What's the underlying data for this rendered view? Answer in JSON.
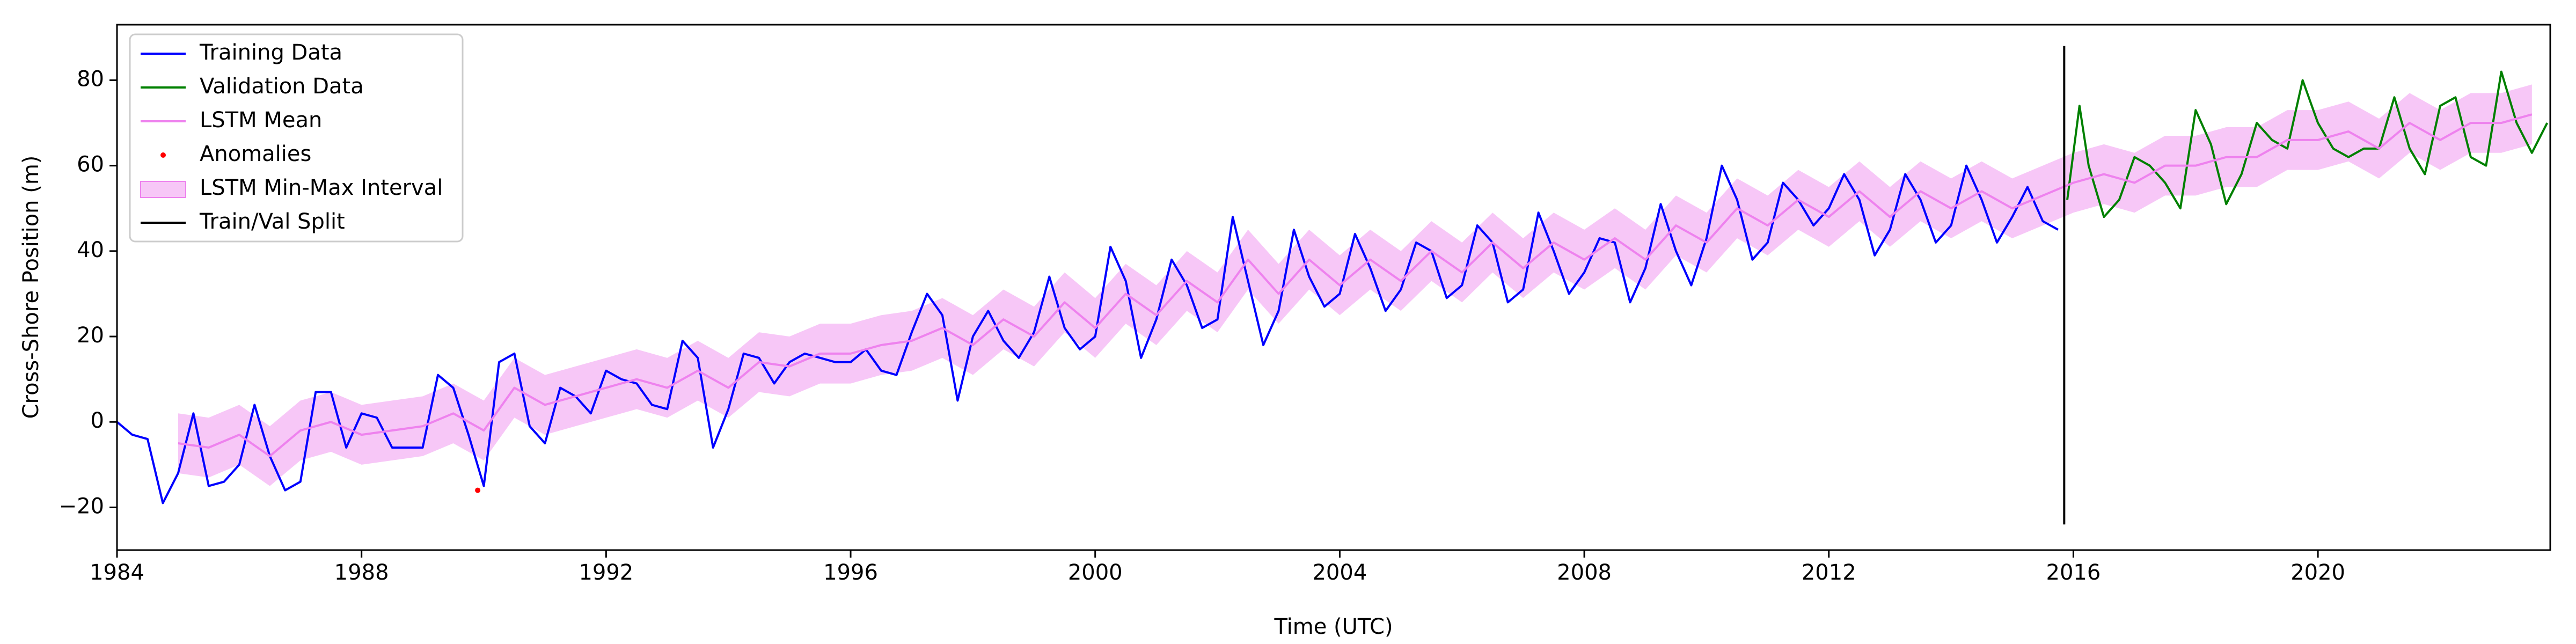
{
  "chart_data": {
    "type": "line",
    "xlabel": "Time (UTC)",
    "ylabel": "Cross-Shore Position (m)",
    "xlim": [
      1984,
      2023.8
    ],
    "ylim": [
      -30,
      93
    ],
    "xticks": [
      1984,
      1988,
      1992,
      1996,
      2000,
      2004,
      2008,
      2012,
      2016,
      2020
    ],
    "yticks": [
      {
        "value": -20,
        "label": "−20"
      },
      0,
      20,
      40,
      60,
      80
    ],
    "legend": "upper left",
    "series": [
      {
        "name": "Training Data",
        "kind": "line",
        "color": "#0000ff",
        "x": [
          1984,
          1984.25,
          1984.5,
          1984.75,
          1985,
          1985.25,
          1985.5,
          1985.75,
          1986,
          1986.25,
          1986.5,
          1986.75,
          1987,
          1987.25,
          1987.5,
          1987.75,
          1988,
          1988.25,
          1988.5,
          1988.75,
          1989,
          1989.25,
          1989.5,
          1989.75,
          1990,
          1990.25,
          1990.5,
          1990.75,
          1991,
          1991.25,
          1991.5,
          1991.75,
          1992,
          1992.25,
          1992.5,
          1992.75,
          1993,
          1993.25,
          1993.5,
          1993.75,
          1994,
          1994.25,
          1994.5,
          1994.75,
          1995,
          1995.25,
          1995.5,
          1995.75,
          1996,
          1996.25,
          1996.5,
          1996.75,
          1997,
          1997.25,
          1997.5,
          1997.75,
          1998,
          1998.25,
          1998.5,
          1998.75,
          1999,
          1999.25,
          1999.5,
          1999.75,
          2000,
          2000.25,
          2000.5,
          2000.75,
          2001,
          2001.25,
          2001.5,
          2001.75,
          2002,
          2002.25,
          2002.5,
          2002.75,
          2003,
          2003.25,
          2003.5,
          2003.75,
          2004,
          2004.25,
          2004.5,
          2004.75,
          2005,
          2005.25,
          2005.5,
          2005.75,
          2006,
          2006.25,
          2006.5,
          2006.75,
          2007,
          2007.25,
          2007.5,
          2007.75,
          2008,
          2008.25,
          2008.5,
          2008.75,
          2009,
          2009.25,
          2009.5,
          2009.75,
          2010,
          2010.25,
          2010.5,
          2010.75,
          2011,
          2011.25,
          2011.5,
          2011.75,
          2012,
          2012.25,
          2012.5,
          2012.75,
          2013,
          2013.25,
          2013.5,
          2013.75,
          2014,
          2014.25,
          2014.5,
          2014.75,
          2015,
          2015.25,
          2015.5,
          2015.75
        ],
        "values": [
          0,
          -3,
          -4,
          -19,
          -12,
          2,
          -15,
          -14,
          -10,
          4,
          -8,
          -16,
          -14,
          7,
          7,
          -6,
          2,
          1,
          -6,
          -6,
          -6,
          11,
          8,
          -3,
          -15,
          14,
          16,
          -1,
          -5,
          8,
          6,
          2,
          12,
          10,
          9,
          4,
          3,
          19,
          15,
          -6,
          3,
          16,
          15,
          9,
          14,
          16,
          15,
          14,
          14,
          17,
          12,
          11,
          21,
          30,
          25,
          5,
          20,
          26,
          19,
          15,
          21,
          34,
          22,
          17,
          20,
          41,
          33,
          15,
          24,
          38,
          32,
          22,
          24,
          48,
          33,
          18,
          26,
          45,
          34,
          27,
          30,
          44,
          36,
          26,
          31,
          42,
          40,
          29,
          32,
          46,
          42,
          28,
          31,
          49,
          40,
          30,
          35,
          43,
          42,
          28,
          36,
          51,
          40,
          32,
          43,
          60,
          52,
          38,
          42,
          56,
          52,
          46,
          50,
          58,
          52,
          39,
          45,
          58,
          52,
          42,
          46,
          60,
          52,
          42,
          48,
          55,
          47,
          45
        ]
      },
      {
        "name": "Validation Data",
        "kind": "line",
        "color": "#008000",
        "x": [
          2015.9,
          2016.1,
          2016.25,
          2016.5,
          2016.75,
          2017,
          2017.25,
          2017.5,
          2017.75,
          2018,
          2018.25,
          2018.5,
          2018.75,
          2019,
          2019.25,
          2019.5,
          2019.75,
          2020,
          2020.25,
          2020.5,
          2020.75,
          2021,
          2021.25,
          2021.5,
          2021.75,
          2022,
          2022.25,
          2022.5,
          2022.75,
          2023,
          2023.25,
          2023.5,
          2023.75
        ],
        "values": [
          52,
          74,
          60,
          48,
          52,
          62,
          60,
          56,
          50,
          73,
          65,
          51,
          58,
          70,
          66,
          64,
          80,
          70,
          64,
          62,
          64,
          64,
          76,
          64,
          58,
          74,
          76,
          62,
          60,
          82,
          70,
          63,
          70
        ]
      },
      {
        "name": "LSTM Mean",
        "kind": "line",
        "color": "#ee82ee",
        "x": [
          1985,
          1985.5,
          1986,
          1986.5,
          1987,
          1987.5,
          1988,
          1988.5,
          1989,
          1989.5,
          1990,
          1990.5,
          1991,
          1991.5,
          1992,
          1992.5,
          1993,
          1993.5,
          1994,
          1994.5,
          1995,
          1995.5,
          1996,
          1996.5,
          1997,
          1997.5,
          1998,
          1998.5,
          1999,
          1999.5,
          2000,
          2000.5,
          2001,
          2001.5,
          2002,
          2002.5,
          2003,
          2003.5,
          2004,
          2004.5,
          2005,
          2005.5,
          2006,
          2006.5,
          2007,
          2007.5,
          2008,
          2008.5,
          2009,
          2009.5,
          2010,
          2010.5,
          2011,
          2011.5,
          2012,
          2012.5,
          2013,
          2013.5,
          2014,
          2014.5,
          2015,
          2015.5,
          2016,
          2016.5,
          2017,
          2017.5,
          2018,
          2018.5,
          2019,
          2019.5,
          2020,
          2020.5,
          2021,
          2021.5,
          2022,
          2022.5,
          2023,
          2023.5
        ],
        "values": [
          -5,
          -6,
          -3,
          -8,
          -2,
          0,
          -3,
          -2,
          -1,
          2,
          -2,
          8,
          4,
          6,
          8,
          10,
          8,
          12,
          8,
          14,
          13,
          16,
          16,
          18,
          19,
          22,
          18,
          24,
          20,
          28,
          22,
          30,
          25,
          33,
          28,
          38,
          30,
          38,
          32,
          38,
          33,
          40,
          35,
          42,
          36,
          42,
          38,
          43,
          38,
          46,
          42,
          50,
          46,
          52,
          48,
          54,
          48,
          54,
          50,
          54,
          50,
          53,
          56,
          58,
          56,
          60,
          60,
          62,
          62,
          66,
          66,
          68,
          64,
          70,
          66,
          70,
          70,
          72
        ]
      },
      {
        "name": "Anomalies",
        "kind": "scatter",
        "color": "#ff0000",
        "x": [
          1989.9
        ],
        "values": [
          -16
        ]
      },
      {
        "name": "LSTM Min-Max Interval",
        "kind": "band",
        "color": "#ee82ee",
        "x": [
          1985,
          1985.5,
          1986,
          1986.5,
          1987,
          1987.5,
          1988,
          1988.5,
          1989,
          1989.5,
          1990,
          1990.5,
          1991,
          1991.5,
          1992,
          1992.5,
          1993,
          1993.5,
          1994,
          1994.5,
          1995,
          1995.5,
          1996,
          1996.5,
          1997,
          1997.5,
          1998,
          1998.5,
          1999,
          1999.5,
          2000,
          2000.5,
          2001,
          2001.5,
          2002,
          2002.5,
          2003,
          2003.5,
          2004,
          2004.5,
          2005,
          2005.5,
          2006,
          2006.5,
          2007,
          2007.5,
          2008,
          2008.5,
          2009,
          2009.5,
          2010,
          2010.5,
          2011,
          2011.5,
          2012,
          2012.5,
          2013,
          2013.5,
          2014,
          2014.5,
          2015,
          2015.5,
          2016,
          2016.5,
          2017,
          2017.5,
          2018,
          2018.5,
          2019,
          2019.5,
          2020,
          2020.5,
          2021,
          2021.5,
          2022,
          2022.5,
          2023,
          2023.5
        ],
        "lower": [
          -12,
          -13,
          -10,
          -15,
          -9,
          -7,
          -10,
          -9,
          -8,
          -5,
          -9,
          1,
          -3,
          -1,
          1,
          3,
          1,
          5,
          1,
          7,
          6,
          9,
          9,
          11,
          12,
          15,
          11,
          17,
          13,
          21,
          15,
          23,
          18,
          26,
          21,
          31,
          23,
          31,
          25,
          31,
          26,
          33,
          28,
          35,
          29,
          35,
          31,
          36,
          31,
          39,
          35,
          43,
          39,
          45,
          41,
          47,
          41,
          47,
          43,
          47,
          43,
          46,
          49,
          51,
          49,
          53,
          53,
          55,
          55,
          59,
          59,
          61,
          57,
          63,
          59,
          63,
          63,
          65
        ],
        "upper": [
          2,
          1,
          4,
          -1,
          5,
          7,
          4,
          5,
          6,
          9,
          5,
          15,
          11,
          13,
          15,
          17,
          15,
          19,
          15,
          21,
          20,
          23,
          23,
          25,
          26,
          29,
          25,
          31,
          27,
          35,
          29,
          37,
          32,
          40,
          35,
          45,
          37,
          45,
          39,
          45,
          40,
          47,
          42,
          49,
          43,
          49,
          45,
          50,
          45,
          53,
          49,
          57,
          53,
          59,
          55,
          61,
          55,
          61,
          57,
          61,
          57,
          60,
          63,
          65,
          63,
          67,
          67,
          69,
          69,
          73,
          73,
          75,
          71,
          77,
          73,
          77,
          77,
          79
        ]
      },
      {
        "name": "Train/Val Split",
        "kind": "line",
        "color": "#000000",
        "x": [
          2015.85,
          2015.85
        ],
        "values": [
          -24,
          88
        ]
      }
    ]
  }
}
